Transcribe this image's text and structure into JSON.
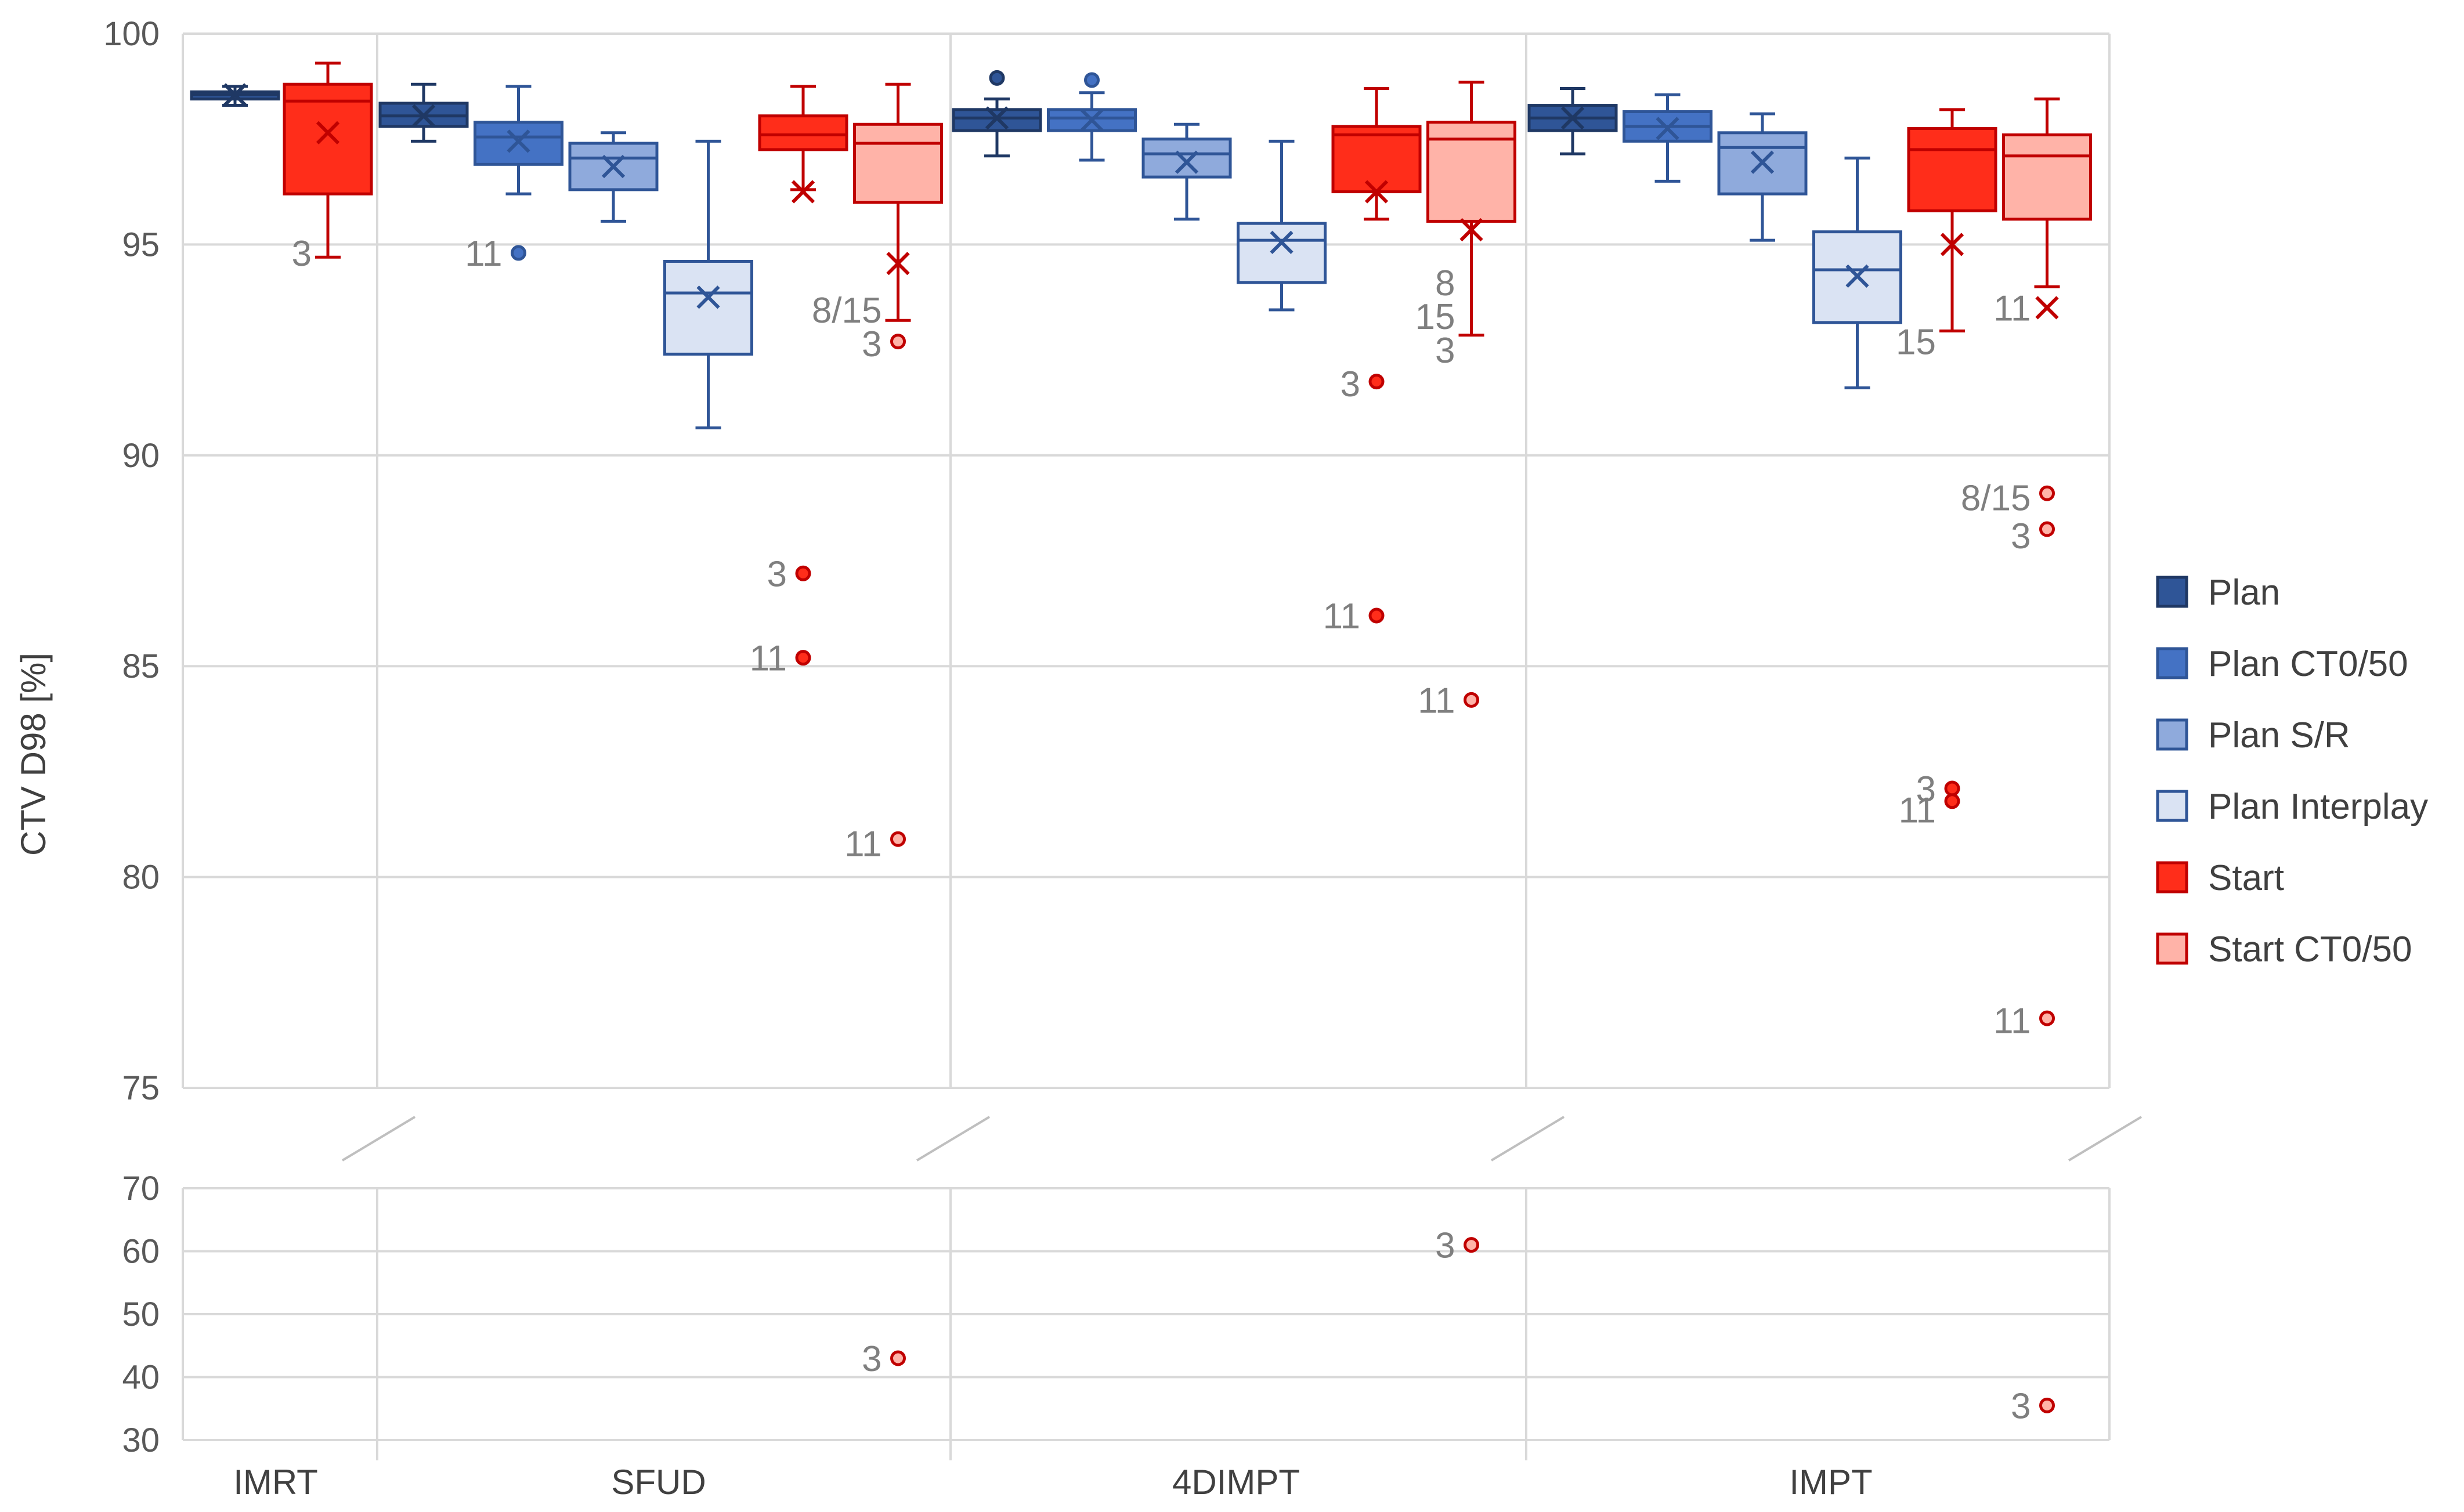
{
  "chart_data": {
    "type": "box",
    "ylabel": "CTV D98 [%]",
    "xlabel": "",
    "title": "",
    "upper_panel": {
      "ylim": [
        75,
        100
      ],
      "ticks": [
        75,
        80,
        85,
        90,
        95,
        100
      ]
    },
    "lower_panel": {
      "ylim": [
        30,
        70
      ],
      "ticks": [
        30,
        40,
        50,
        60,
        70
      ]
    },
    "y_axis_break": true,
    "gridlines": true,
    "legend_position": "right",
    "categories": [
      "IMRT",
      "SFUD",
      "4DIMPT",
      "IMPT"
    ],
    "series": [
      {
        "name": "Plan",
        "fill": "#2F5597",
        "stroke": "#1F3864"
      },
      {
        "name": "Plan CT0/50",
        "fill": "#4472C4",
        "stroke": "#2F5597"
      },
      {
        "name": "Plan S/R",
        "fill": "#8FAADC",
        "stroke": "#2F5597"
      },
      {
        "name": "Plan Interplay",
        "fill": "#DAE3F3",
        "stroke": "#2F5597"
      },
      {
        "name": "Start",
        "fill": "#FF2D1A",
        "stroke": "#C00000"
      },
      {
        "name": "Start CT0/50",
        "fill": "#FFB3A8",
        "stroke": "#C00000"
      }
    ],
    "boxes": [
      {
        "category": "IMRT",
        "series": "Plan",
        "min": 98.3,
        "q1": 98.45,
        "median": 98.55,
        "q3": 98.62,
        "max": 98.75,
        "mean": 98.55,
        "outliers": []
      },
      {
        "category": "IMRT",
        "series": "Start",
        "min": 94.7,
        "q1": 96.2,
        "median": 98.4,
        "q3": 98.8,
        "max": 99.3,
        "mean": 97.65,
        "outliers": []
      },
      {
        "category": "SFUD",
        "series": "Plan",
        "min": 97.45,
        "q1": 97.8,
        "median": 98.05,
        "q3": 98.35,
        "max": 98.8,
        "mean": 98.05,
        "outliers": []
      },
      {
        "category": "SFUD",
        "series": "Plan CT0/50",
        "min": 96.2,
        "q1": 96.9,
        "median": 97.55,
        "q3": 97.9,
        "max": 98.75,
        "mean": 97.45,
        "outliers": [
          94.8
        ]
      },
      {
        "category": "SFUD",
        "series": "Plan S/R",
        "min": 95.55,
        "q1": 96.3,
        "median": 97.05,
        "q3": 97.4,
        "max": 97.65,
        "mean": 96.85,
        "outliers": []
      },
      {
        "category": "SFUD",
        "series": "Plan Interplay",
        "min": 90.65,
        "q1": 92.4,
        "median": 93.85,
        "q3": 94.6,
        "max": 97.45,
        "mean": 93.75,
        "outliers": []
      },
      {
        "category": "SFUD",
        "series": "Start",
        "min": 96.3,
        "q1": 97.25,
        "median": 97.6,
        "q3": 98.05,
        "max": 98.75,
        "mean": 96.25,
        "outliers": [
          87.2,
          85.2
        ]
      },
      {
        "category": "SFUD",
        "series": "Start CT0/50",
        "min": 93.2,
        "q1": 96.0,
        "median": 97.4,
        "q3": 97.85,
        "max": 98.8,
        "mean": 94.55,
        "outliers": [
          92.7,
          80.9,
          43.0
        ]
      },
      {
        "category": "4DIMPT",
        "series": "Plan",
        "min": 97.1,
        "q1": 97.7,
        "median": 98.0,
        "q3": 98.2,
        "max": 98.45,
        "mean": 98.0,
        "outliers": [
          98.95
        ]
      },
      {
        "category": "4DIMPT",
        "series": "Plan CT0/50",
        "min": 97.0,
        "q1": 97.7,
        "median": 98.0,
        "q3": 98.2,
        "max": 98.6,
        "mean": 97.95,
        "outliers": [
          98.9
        ]
      },
      {
        "category": "4DIMPT",
        "series": "Plan S/R",
        "min": 95.6,
        "q1": 96.6,
        "median": 97.15,
        "q3": 97.5,
        "max": 97.85,
        "mean": 96.95,
        "outliers": []
      },
      {
        "category": "4DIMPT",
        "series": "Plan Interplay",
        "min": 93.45,
        "q1": 94.1,
        "median": 95.1,
        "q3": 95.5,
        "max": 97.45,
        "mean": 95.05,
        "outliers": []
      },
      {
        "category": "4DIMPT",
        "series": "Start",
        "min": 95.6,
        "q1": 96.25,
        "median": 97.6,
        "q3": 97.8,
        "max": 98.7,
        "mean": 96.25,
        "outliers": [
          91.75,
          86.2
        ]
      },
      {
        "category": "4DIMPT",
        "series": "Start CT0/50",
        "min": 92.85,
        "q1": 95.55,
        "median": 97.5,
        "q3": 97.9,
        "max": 98.85,
        "mean": 95.35,
        "outliers": [
          84.2,
          61.0
        ]
      },
      {
        "category": "IMPT",
        "series": "Plan",
        "min": 97.15,
        "q1": 97.7,
        "median": 98.0,
        "q3": 98.3,
        "max": 98.7,
        "mean": 98.0,
        "outliers": []
      },
      {
        "category": "IMPT",
        "series": "Plan CT0/50",
        "min": 96.5,
        "q1": 97.45,
        "median": 97.8,
        "q3": 98.15,
        "max": 98.55,
        "mean": 97.75,
        "outliers": []
      },
      {
        "category": "IMPT",
        "series": "Plan S/R",
        "min": 95.1,
        "q1": 96.2,
        "median": 97.3,
        "q3": 97.65,
        "max": 98.1,
        "mean": 96.95,
        "outliers": []
      },
      {
        "category": "IMPT",
        "series": "Plan Interplay",
        "min": 91.6,
        "q1": 93.15,
        "median": 94.4,
        "q3": 95.3,
        "max": 97.05,
        "mean": 94.25,
        "outliers": []
      },
      {
        "category": "IMPT",
        "series": "Start",
        "min": 92.95,
        "q1": 95.8,
        "median": 97.25,
        "q3": 97.75,
        "max": 98.2,
        "mean": 95.0,
        "outliers": [
          82.1,
          81.8
        ]
      },
      {
        "category": "IMPT",
        "series": "Start CT0/50",
        "min": 94.0,
        "q1": 95.6,
        "median": 97.1,
        "q3": 97.6,
        "max": 98.45,
        "mean": 93.5,
        "outliers": [
          89.1,
          88.25,
          76.65,
          35.5
        ]
      }
    ],
    "annotations": [
      {
        "text": "3",
        "x": "IMRT / Start",
        "y": 94.8
      },
      {
        "text": "11",
        "x": "SFUD / Plan CT0/50",
        "y": 94.8
      },
      {
        "text": "8/15",
        "x": "SFUD / Start CT0/50",
        "y": 93.45
      },
      {
        "text": "3",
        "x": "SFUD / Start CT0/50",
        "y": 92.65
      },
      {
        "text": "3",
        "x": "SFUD / Start",
        "y": 87.2
      },
      {
        "text": "11",
        "x": "SFUD / Start",
        "y": 85.2
      },
      {
        "text": "11",
        "x": "SFUD / Start CT0/50",
        "y": 80.8
      },
      {
        "text": "3",
        "x": "SFUD / Start CT0/50",
        "y": 43.0
      },
      {
        "text": "8",
        "x": "4DIMPT / Start CT0/50",
        "y": 94.1
      },
      {
        "text": "15",
        "x": "4DIMPT / Start CT0/50",
        "y": 93.3
      },
      {
        "text": "3",
        "x": "4DIMPT / Start CT0/50",
        "y": 92.5
      },
      {
        "text": "3",
        "x": "4DIMPT / Start",
        "y": 91.7
      },
      {
        "text": "11",
        "x": "4DIMPT / Start",
        "y": 86.2
      },
      {
        "text": "11",
        "x": "4DIMPT / Start CT0/50",
        "y": 84.2
      },
      {
        "text": "3",
        "x": "4DIMPT / Start CT0/50",
        "y": 61.0
      },
      {
        "text": "15",
        "x": "IMPT / Start",
        "y": 92.7
      },
      {
        "text": "11",
        "x": "IMPT / Start CT0/50",
        "y": 93.5
      },
      {
        "text": "8/15",
        "x": "IMPT / Start CT0/50",
        "y": 89.0
      },
      {
        "text": "3",
        "x": "IMPT / Start CT0/50",
        "y": 88.1
      },
      {
        "text": "3",
        "x": "IMPT / Start",
        "y": 82.1
      },
      {
        "text": "11",
        "x": "IMPT / Start",
        "y": 81.6
      },
      {
        "text": "11",
        "x": "IMPT / Start CT0/50",
        "y": 76.6
      },
      {
        "text": "3",
        "x": "IMPT / Start CT0/50",
        "y": 35.5
      }
    ]
  }
}
